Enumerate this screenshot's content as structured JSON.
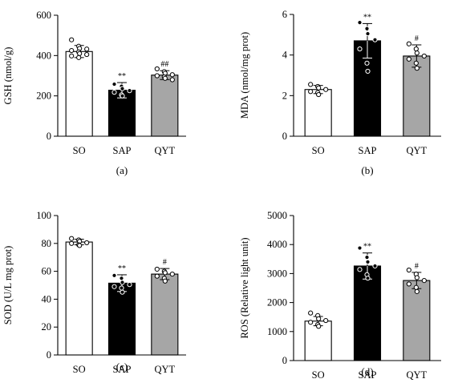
{
  "chart_data": [
    {
      "type": "bar",
      "panel_label": "(a)",
      "title": "",
      "xlabel": "",
      "ylabel": "GSH (nmol/g)",
      "categories": [
        "SO",
        "SAP",
        "QYT"
      ],
      "values": [
        420,
        228,
        303
      ],
      "errors": [
        30,
        38,
        22
      ],
      "significance": [
        "",
        "**",
        "##"
      ],
      "ylim": [
        0,
        600
      ],
      "yticks": [
        0,
        200,
        400,
        600
      ],
      "points": [
        [
          478,
          446,
          435,
          432,
          425,
          418,
          410,
          405,
          398,
          390
        ],
        [
          258,
          248,
          236,
          226,
          218,
          205,
          200
        ],
        [
          334,
          320,
          312,
          305,
          300,
          294,
          287,
          280
        ]
      ],
      "colors": [
        "#ffffff",
        "#000000",
        "#a6a6a6"
      ]
    },
    {
      "type": "bar",
      "panel_label": "(b)",
      "title": "",
      "xlabel": "",
      "ylabel": "MDA (nmol/mg prot)",
      "categories": [
        "SO",
        "SAP",
        "QYT"
      ],
      "values": [
        2.3,
        4.7,
        3.95
      ],
      "errors": [
        0.2,
        0.85,
        0.55
      ],
      "significance": [
        "",
        "**",
        "#"
      ],
      "ylim": [
        0,
        6
      ],
      "yticks": [
        0,
        2,
        4,
        6
      ],
      "points": [
        [
          2.55,
          2.45,
          2.38,
          2.3,
          2.2,
          2.15,
          2.05
        ],
        [
          5.6,
          5.3,
          5.05,
          4.75,
          4.3,
          3.6,
          3.2
        ],
        [
          4.55,
          4.3,
          4.1,
          3.95,
          3.8,
          3.6,
          3.35
        ]
      ],
      "colors": [
        "#ffffff",
        "#000000",
        "#a6a6a6"
      ]
    },
    {
      "type": "bar",
      "panel_label": "(c)",
      "title": "",
      "xlabel": "",
      "ylabel": "SOD (U/L mg prot)",
      "categories": [
        "SO",
        "SAP",
        "QYT"
      ],
      "values": [
        81,
        51.5,
        58
      ],
      "errors": [
        2,
        6,
        4
      ],
      "significance": [
        "",
        "**",
        "#"
      ],
      "ylim": [
        0,
        100
      ],
      "yticks": [
        0,
        20,
        40,
        60,
        80,
        100
      ],
      "points": [
        [
          83.5,
          82.5,
          81.5,
          80.5,
          80,
          79,
          78.5
        ],
        [
          57,
          55,
          52,
          50.5,
          49,
          48,
          45
        ],
        [
          61.5,
          60,
          59,
          58,
          56.5,
          55,
          53
        ]
      ],
      "colors": [
        "#ffffff",
        "#000000",
        "#a6a6a6"
      ]
    },
    {
      "type": "bar",
      "panel_label": "(d)",
      "title": "",
      "xlabel": "",
      "ylabel": "ROS (Relative light unit)",
      "categories": [
        "SO",
        "SAP",
        "QYT"
      ],
      "values": [
        1360,
        3260,
        2760
      ],
      "errors": [
        160,
        450,
        280
      ],
      "significance": [
        "",
        "**",
        "#"
      ],
      "ylim": [
        0,
        5000
      ],
      "yticks": [
        0,
        1000,
        2000,
        3000,
        4000,
        5000
      ],
      "points": [
        [
          1640,
          1550,
          1440,
          1380,
          1320,
          1240,
          1180
        ],
        [
          3880,
          3560,
          3400,
          3260,
          3140,
          2960,
          2840
        ],
        [
          3120,
          2980,
          2860,
          2760,
          2640,
          2520,
          2380
        ]
      ],
      "colors": [
        "#ffffff",
        "#000000",
        "#a6a6a6"
      ]
    }
  ]
}
